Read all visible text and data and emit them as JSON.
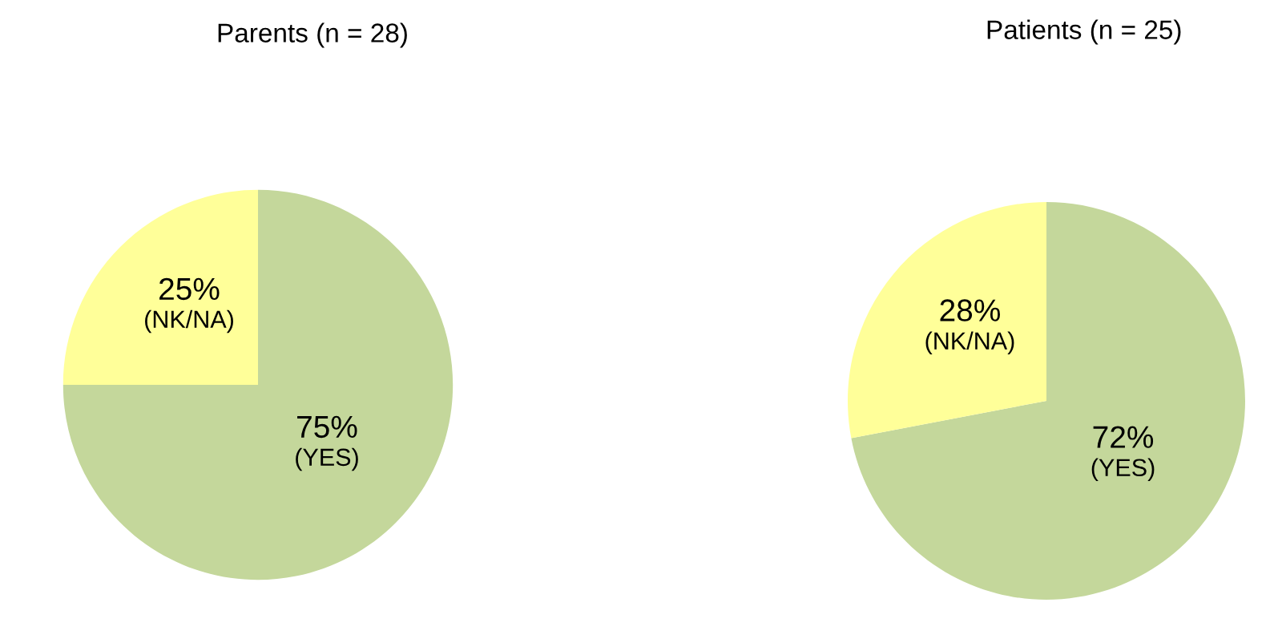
{
  "chart_data": [
    {
      "type": "pie",
      "title": "Parents (n = 28)",
      "categories": [
        "(YES)",
        "(NK/NA)"
      ],
      "values": [
        75,
        25
      ],
      "colors": [
        "#c4d79b",
        "#ffff99"
      ],
      "value_labels": [
        "75%",
        "25%"
      ]
    },
    {
      "type": "pie",
      "title": "Patients (n = 25)",
      "categories": [
        "(YES)",
        "(NK/NA)"
      ],
      "values": [
        72,
        28
      ],
      "colors": [
        "#c4d79b",
        "#ffff99"
      ],
      "value_labels": [
        "72%",
        "28%"
      ]
    }
  ]
}
